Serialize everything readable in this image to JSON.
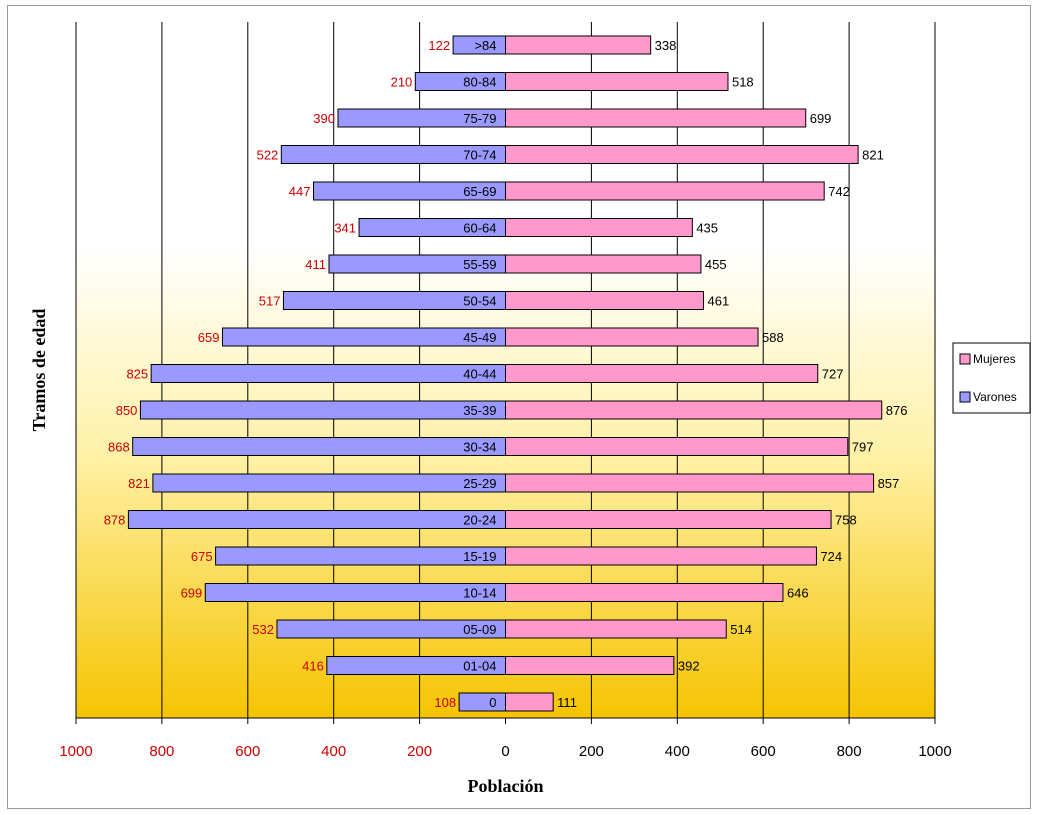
{
  "chart_data": {
    "type": "bar",
    "orientation": "horizontal",
    "subtype": "population-pyramid",
    "categories": [
      "0",
      "01-04",
      "05-09",
      "10-14",
      "15-19",
      "20-24",
      "25-29",
      "30-34",
      "35-39",
      "40-44",
      "45-49",
      "50-54",
      "55-59",
      "60-64",
      "65-69",
      "70-74",
      "75-79",
      "80-84",
      ">84"
    ],
    "series": [
      {
        "name": "Varones",
        "side": "left",
        "color": "#9999FF",
        "label_color": "#cc0000",
        "values": [
          108,
          416,
          532,
          699,
          675,
          878,
          821,
          868,
          850,
          825,
          659,
          517,
          411,
          341,
          447,
          522,
          390,
          210,
          122
        ]
      },
      {
        "name": "Mujeres",
        "side": "right",
        "color": "#FF99CC",
        "label_color": "#000000",
        "values": [
          111,
          392,
          514,
          646,
          724,
          758,
          857,
          797,
          876,
          727,
          588,
          461,
          455,
          435,
          742,
          821,
          699,
          518,
          338
        ]
      }
    ],
    "xlabel": "Población",
    "ylabel": "Tramos de edad",
    "xlim": [
      -1000,
      1000
    ],
    "x_ticks": [
      {
        "value": -1000,
        "label": "1000"
      },
      {
        "value": -800,
        "label": "800"
      },
      {
        "value": -600,
        "label": "600"
      },
      {
        "value": -400,
        "label": "400"
      },
      {
        "value": -200,
        "label": "200"
      },
      {
        "value": 0,
        "label": "0"
      },
      {
        "value": 200,
        "label": "200"
      },
      {
        "value": 400,
        "label": "400"
      },
      {
        "value": 600,
        "label": "600"
      },
      {
        "value": 800,
        "label": "800"
      },
      {
        "value": 1000,
        "label": "1000"
      }
    ],
    "left_tick_color": "#cc0000",
    "right_tick_color": "#000000",
    "legend": {
      "position": "right",
      "entries": [
        {
          "label": "Mujeres",
          "color": "#FF99CC"
        },
        {
          "label": "Varones",
          "color": "#9999FF"
        }
      ]
    },
    "plot_background": {
      "top": "#FFFFFF",
      "bottom": "#F5C400"
    },
    "grid": {
      "vertical": true,
      "horizontal": false,
      "color": "#000000"
    }
  }
}
